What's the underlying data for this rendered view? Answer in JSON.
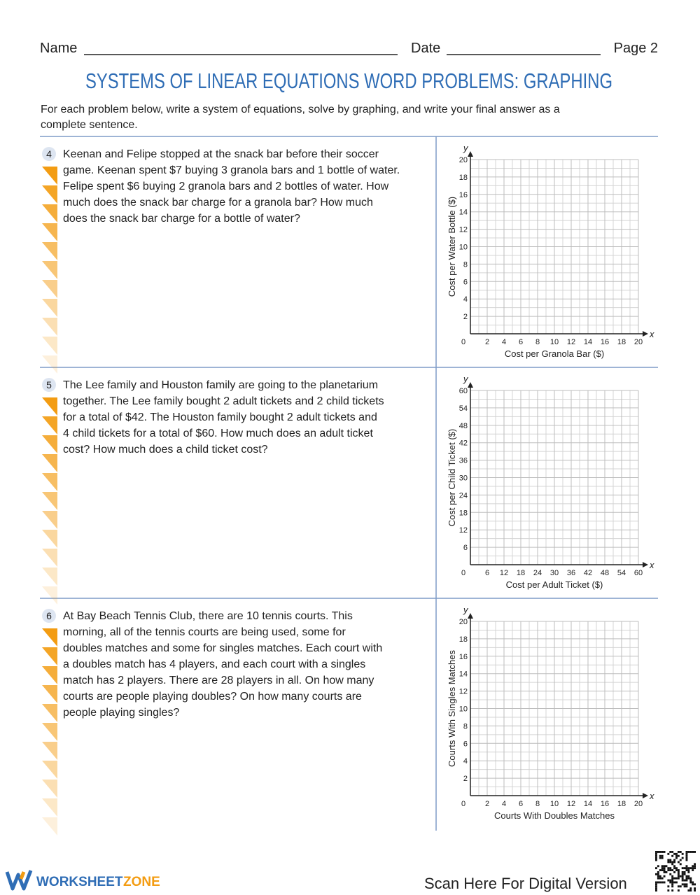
{
  "header": {
    "name_label": "Name",
    "date_label": "Date",
    "page": "Page 2",
    "title": "SYSTEMS OF LINEAR EQUATIONS WORD PROBLEMS: GRAPHING",
    "instructions": [
      "For each problem below, write a system of equations, solve by graphing, and write your final answer as a",
      "complete sentence."
    ]
  },
  "problems": [
    {
      "number": 4,
      "lines": [
        "Keenan and Felipe stopped at the snack bar before their soccer",
        "game. Keenan spent $7 buying 3 granola bars and 1 bottle of water.",
        "Felipe spent $6 buying 2 granola bars and 2 bottles of water. How",
        "much does the snack bar charge for a granola bar? How much",
        "does the snack bar charge for a bottle of water?"
      ],
      "graph": {
        "x_axis": "x",
        "y_axis": "y",
        "xlabel": "Cost per Granola Bar ($)",
        "ylabel": "Cost per Water Bottle ($)",
        "xlim": [
          0,
          20
        ],
        "ylim": [
          0,
          20
        ],
        "xticks": [
          0,
          2,
          4,
          6,
          8,
          10,
          12,
          14,
          16,
          18,
          20
        ],
        "yticks": [
          2,
          4,
          6,
          8,
          10,
          12,
          14,
          16,
          18,
          20
        ]
      }
    },
    {
      "number": 5,
      "lines": [
        "The Lee family and Houston family are going to the planetarium",
        "together. The Lee family bought 2 adult tickets and 2 child tickets",
        "for a total of $42. The Houston family bought 2 adult tickets and",
        "4 child tickets for a total of $60. How much does an adult ticket",
        "cost? How much does a child ticket cost?"
      ],
      "graph": {
        "x_axis": "x",
        "y_axis": "y",
        "xlabel": "Cost per Adult Ticket ($)",
        "ylabel": "Cost per Child Ticket ($)",
        "xlim": [
          0,
          60
        ],
        "ylim": [
          0,
          60
        ],
        "xticks": [
          0,
          6,
          12,
          18,
          24,
          30,
          36,
          42,
          48,
          54,
          60
        ],
        "yticks": [
          6,
          12,
          18,
          24,
          30,
          36,
          42,
          48,
          54,
          60
        ]
      }
    },
    {
      "number": 6,
      "lines": [
        "At Bay Beach Tennis Club, there are 10 tennis courts. This",
        "morning, all of the tennis courts are being used, some for",
        "doubles matches and some for singles matches. Each court with",
        "a doubles match has 4 players, and each court with a singles",
        "match has 2 players. There are 28 players in all. On how many",
        "courts are people playing doubles? On how many courts are",
        "people playing singles?"
      ],
      "graph": {
        "x_axis": "x",
        "y_axis": "y",
        "xlabel": "Courts With Doubles Matches",
        "ylabel": "Courts With Singles Matches",
        "xlim": [
          0,
          20
        ],
        "ylim": [
          0,
          20
        ],
        "xticks": [
          0,
          2,
          4,
          6,
          8,
          10,
          12,
          14,
          16,
          18,
          20
        ],
        "yticks": [
          2,
          4,
          6,
          8,
          10,
          12,
          14,
          16,
          18,
          20
        ]
      }
    }
  ],
  "footer": {
    "brand": "WORKSHEET",
    "brand_accent": "ZONE",
    "scan": "Scan Here For Digital Version"
  }
}
